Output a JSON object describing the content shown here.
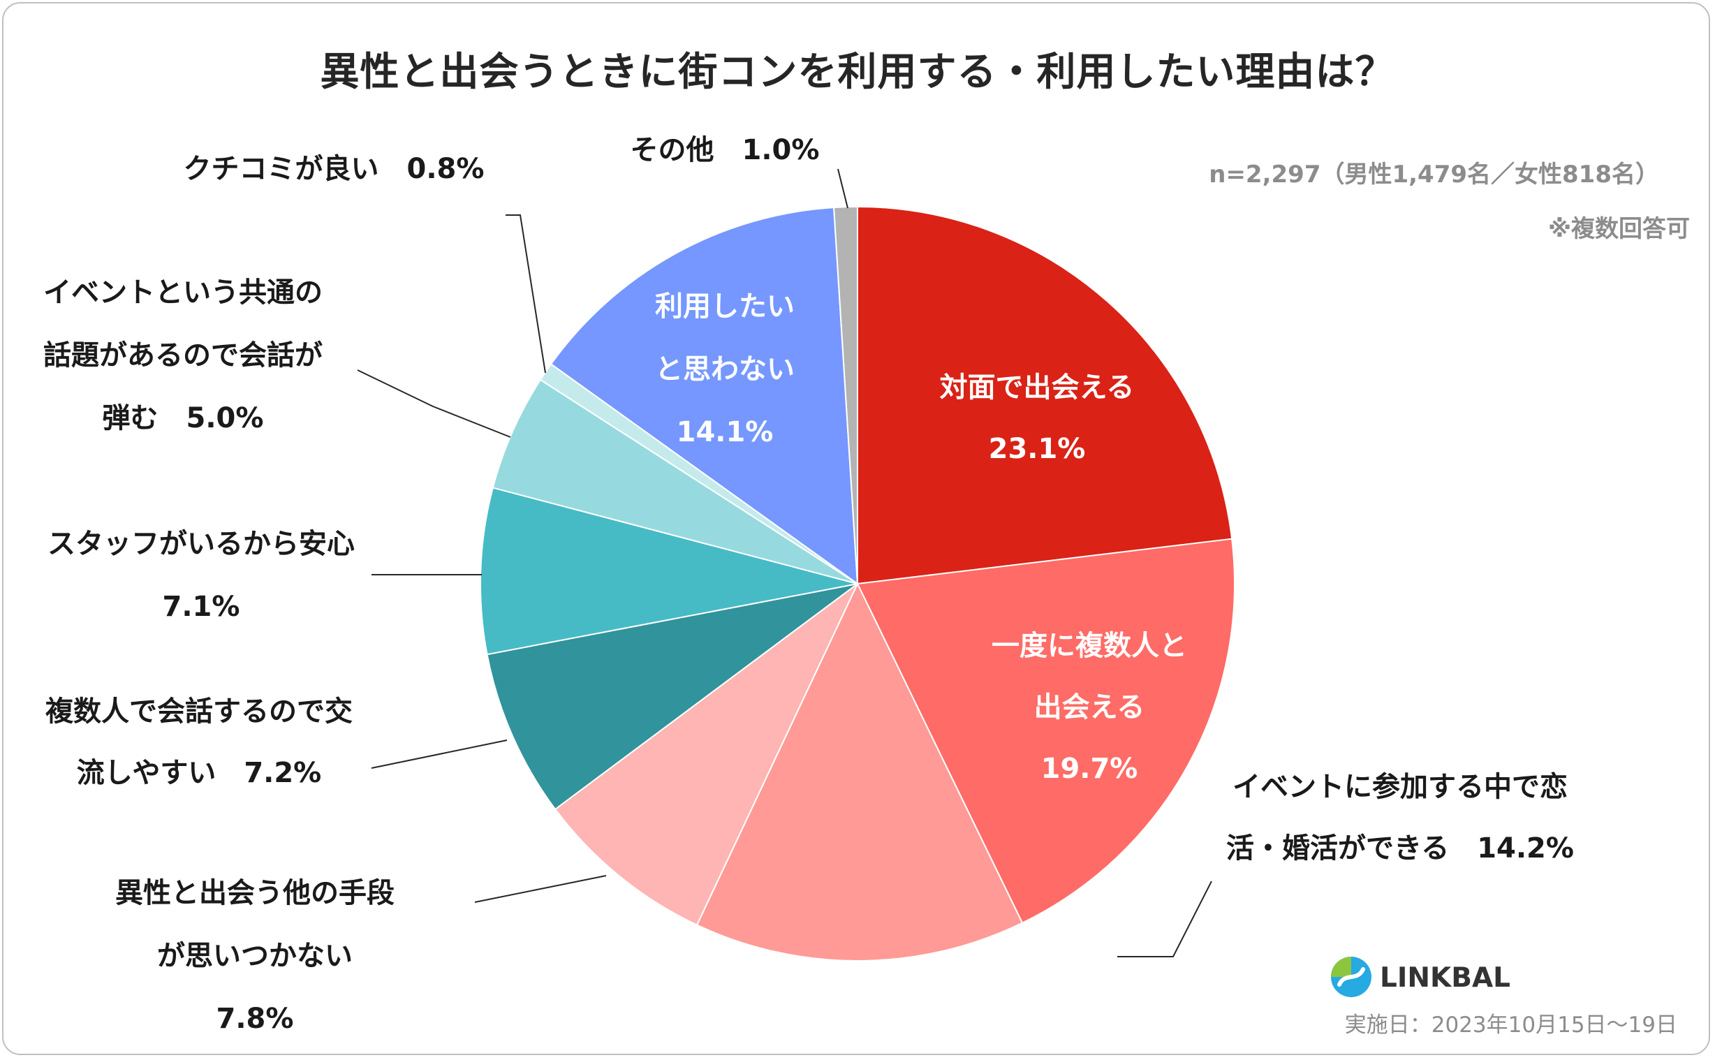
{
  "header": {
    "title": "異性と出会うときに街コンを利用する・利用したい理由は？",
    "sample": "n=2,297（男性1,479名／女性818名）",
    "multi_answer": "※複数回答可",
    "survey_date": "実施日：2023年10月15日～19日",
    "brand": "LINKBAL"
  },
  "chart_data": {
    "type": "pie",
    "title": "異性と出会うときに街コンを利用する・利用したい理由は？",
    "start_angle": "12 o'clock, clockwise",
    "slices": [
      {
        "name": "対面で出会える",
        "value": 23.1,
        "color": "#da2216",
        "label_lines": [
          "対面で出会える",
          "23.1%"
        ],
        "label_inside": true
      },
      {
        "name": "一度に複数人と出会える",
        "value": 19.7,
        "color": "#ff6b66",
        "label_lines": [
          "一度に複数人と",
          "出会える",
          "19.7%"
        ],
        "label_inside": true
      },
      {
        "name": "イベントに参加する中で恋活・婚活ができる",
        "value": 14.2,
        "color": "#ff9a96",
        "label_lines": [
          "イベントに参加する中で恋",
          "活・婚活ができる　14.2%"
        ],
        "label_inside": false
      },
      {
        "name": "異性と出会う他の手段が思いつかない",
        "value": 7.8,
        "color": "#ffb5b3",
        "label_lines": [
          "異性と出会う他の手段",
          "が思いつかない",
          "7.8%"
        ],
        "label_inside": false
      },
      {
        "name": "複数人で会話するので交流しやすい",
        "value": 7.2,
        "color": "#31939b",
        "label_lines": [
          "複数人で会話するので交",
          "流しやすい　7.2%"
        ],
        "label_inside": false
      },
      {
        "name": "スタッフがいるから安心",
        "value": 7.1,
        "color": "#46bbc5",
        "label_lines": [
          "スタッフがいるから安心",
          "7.1%"
        ],
        "label_inside": false
      },
      {
        "name": "イベントという共通の話題があるので会話が弾む",
        "value": 5.0,
        "color": "#96dadf",
        "label_lines": [
          "イベントという共通の",
          "話題があるので会話が",
          "弾む　5.0%"
        ],
        "label_inside": false
      },
      {
        "name": "クチコミが良い",
        "value": 0.8,
        "color": "#c4eaec",
        "label_lines": [
          "クチコミが良い　0.8%"
        ],
        "label_inside": false
      },
      {
        "name": "利用したいと思わない",
        "value": 14.1,
        "color": "#7597ff",
        "label_lines": [
          "利用したい",
          "と思わない",
          "14.1%"
        ],
        "label_inside": true
      },
      {
        "name": "その他",
        "value": 1.0,
        "color": "#b3b3b3",
        "label_lines": [
          "その他　1.0%"
        ],
        "label_inside": false
      }
    ],
    "colors": {
      "text_dark": "#1a1a1a",
      "text_light": "#ffffff",
      "leader": "#262626"
    }
  }
}
